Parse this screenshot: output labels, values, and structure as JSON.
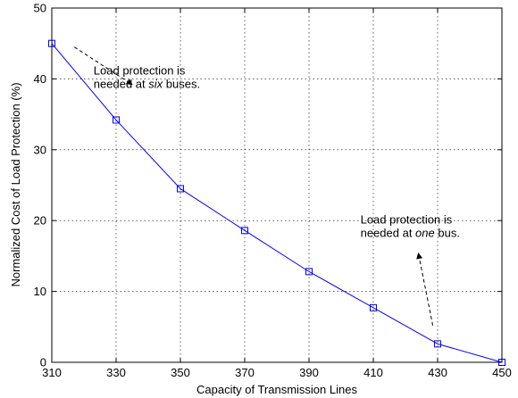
{
  "chart_data": {
    "type": "line",
    "xlabel": "Capacity of Transmission Lines",
    "ylabel": "Normalized Cost of Load Protection (%)",
    "xlim": [
      310,
      450
    ],
    "ylim": [
      0,
      50
    ],
    "xticks": [
      310,
      330,
      350,
      370,
      390,
      410,
      430,
      450
    ],
    "yticks": [
      0,
      10,
      20,
      30,
      40,
      50
    ],
    "grid": true,
    "series": [
      {
        "color": "#0000ff",
        "marker": "square",
        "x": [
          310,
          330,
          350,
          370,
          390,
          410,
          430,
          450
        ],
        "y": [
          45.0,
          34.2,
          24.5,
          18.6,
          12.8,
          7.7,
          2.6,
          0.0
        ]
      }
    ],
    "annotations": [
      {
        "lines": [
          [
            {
              "text": "Load protection is",
              "italic": false
            }
          ],
          [
            {
              "text": "needed at ",
              "italic": false
            },
            {
              "text": "six",
              "italic": true
            },
            {
              "text": " buses.",
              "italic": false
            }
          ]
        ],
        "text_at": [
          323,
          40.6
        ],
        "arrow_from": [
          317,
          44.5
        ],
        "arrow_to": [
          335,
          39.2
        ]
      },
      {
        "lines": [
          [
            {
              "text": "Load protection is",
              "italic": false
            }
          ],
          [
            {
              "text": "needed at ",
              "italic": false
            },
            {
              "text": "one",
              "italic": true
            },
            {
              "text": " bus.",
              "italic": false
            }
          ]
        ],
        "text_at": [
          406,
          19.6
        ],
        "arrow_from": [
          428.5,
          5.2
        ],
        "arrow_to": [
          424,
          15.4
        ]
      }
    ]
  }
}
